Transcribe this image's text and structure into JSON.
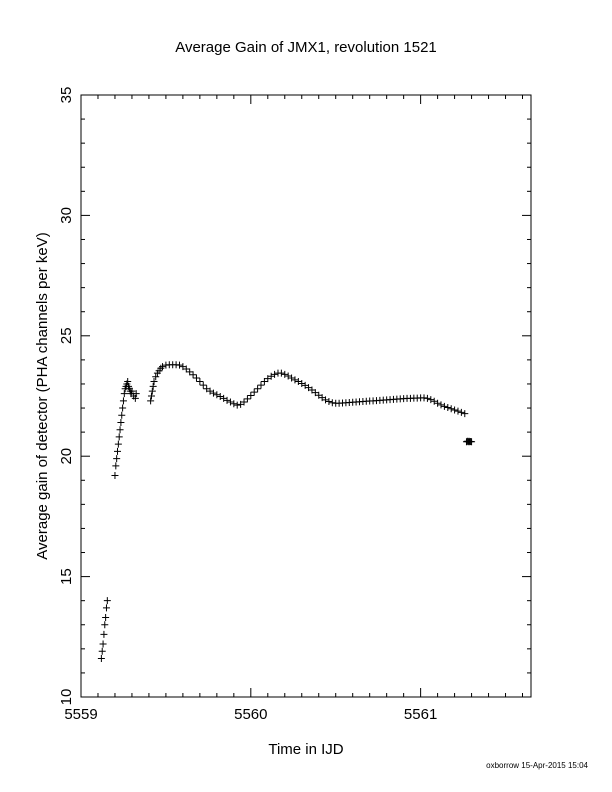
{
  "chart_data": {
    "type": "scatter",
    "title": "Average Gain of JMX1, revolution 1521",
    "xlabel": "Time in IJD",
    "ylabel": "Average gain of detector (PHA channels per keV)",
    "xlim": [
      5559,
      5561.65
    ],
    "ylim": [
      10,
      35
    ],
    "xticks": [
      5559,
      5560,
      5561
    ],
    "xtick_labels": [
      "5559",
      "5560",
      "5561"
    ],
    "yticks": [
      10,
      15,
      20,
      25,
      30,
      35
    ],
    "ytick_labels": [
      "10",
      "15",
      "20",
      "25",
      "30",
      "35"
    ],
    "grid": false,
    "marker": "plus",
    "series": [
      {
        "values": [
          [
            5559.12,
            11.6
          ],
          [
            5559.125,
            11.9
          ],
          [
            5559.13,
            12.2
          ],
          [
            5559.135,
            12.6
          ],
          [
            5559.14,
            13.0
          ],
          [
            5559.145,
            13.3
          ],
          [
            5559.15,
            13.7
          ],
          [
            5559.155,
            14.0
          ],
          [
            5559.2,
            19.2
          ],
          [
            5559.205,
            19.6
          ],
          [
            5559.21,
            19.9
          ],
          [
            5559.215,
            20.2
          ],
          [
            5559.22,
            20.5
          ],
          [
            5559.225,
            20.8
          ],
          [
            5559.23,
            21.1
          ],
          [
            5559.235,
            21.4
          ],
          [
            5559.24,
            21.7
          ],
          [
            5559.245,
            22.0
          ],
          [
            5559.25,
            22.3
          ],
          [
            5559.255,
            22.6
          ],
          [
            5559.26,
            22.8
          ],
          [
            5559.265,
            22.9
          ],
          [
            5559.27,
            23.0
          ],
          [
            5559.275,
            23.1
          ],
          [
            5559.28,
            22.9
          ],
          [
            5559.285,
            22.8
          ],
          [
            5559.29,
            22.7
          ],
          [
            5559.295,
            22.6
          ],
          [
            5559.3,
            22.7
          ],
          [
            5559.31,
            22.5
          ],
          [
            5559.32,
            22.4
          ],
          [
            5559.325,
            22.6
          ],
          [
            5559.41,
            22.3
          ],
          [
            5559.415,
            22.5
          ],
          [
            5559.42,
            22.7
          ],
          [
            5559.425,
            22.9
          ],
          [
            5559.43,
            23.1
          ],
          [
            5559.44,
            23.3
          ],
          [
            5559.45,
            23.45
          ],
          [
            5559.46,
            23.55
          ],
          [
            5559.47,
            23.65
          ],
          [
            5559.48,
            23.72
          ],
          [
            5559.5,
            23.78
          ],
          [
            5559.52,
            23.8
          ],
          [
            5559.54,
            23.8
          ],
          [
            5559.56,
            23.8
          ],
          [
            5559.58,
            23.78
          ],
          [
            5559.6,
            23.72
          ],
          [
            5559.62,
            23.62
          ],
          [
            5559.64,
            23.5
          ],
          [
            5559.66,
            23.38
          ],
          [
            5559.68,
            23.25
          ],
          [
            5559.7,
            23.1
          ],
          [
            5559.72,
            22.95
          ],
          [
            5559.74,
            22.8
          ],
          [
            5559.76,
            22.7
          ],
          [
            5559.78,
            22.62
          ],
          [
            5559.8,
            22.55
          ],
          [
            5559.82,
            22.48
          ],
          [
            5559.84,
            22.4
          ],
          [
            5559.86,
            22.32
          ],
          [
            5559.88,
            22.25
          ],
          [
            5559.9,
            22.18
          ],
          [
            5559.92,
            22.12
          ],
          [
            5559.94,
            22.15
          ],
          [
            5559.96,
            22.25
          ],
          [
            5559.98,
            22.38
          ],
          [
            5560.0,
            22.52
          ],
          [
            5560.02,
            22.66
          ],
          [
            5560.04,
            22.8
          ],
          [
            5560.06,
            22.95
          ],
          [
            5560.08,
            23.1
          ],
          [
            5560.1,
            23.22
          ],
          [
            5560.12,
            23.32
          ],
          [
            5560.14,
            23.4
          ],
          [
            5560.16,
            23.45
          ],
          [
            5560.18,
            23.45
          ],
          [
            5560.2,
            23.4
          ],
          [
            5560.22,
            23.33
          ],
          [
            5560.24,
            23.25
          ],
          [
            5560.26,
            23.17
          ],
          [
            5560.28,
            23.1
          ],
          [
            5560.3,
            23.02
          ],
          [
            5560.32,
            22.94
          ],
          [
            5560.34,
            22.85
          ],
          [
            5560.36,
            22.75
          ],
          [
            5560.38,
            22.64
          ],
          [
            5560.4,
            22.53
          ],
          [
            5560.42,
            22.43
          ],
          [
            5560.44,
            22.34
          ],
          [
            5560.46,
            22.27
          ],
          [
            5560.48,
            22.22
          ],
          [
            5560.5,
            22.2
          ],
          [
            5560.52,
            22.2
          ],
          [
            5560.54,
            22.21
          ],
          [
            5560.56,
            22.22
          ],
          [
            5560.58,
            22.23
          ],
          [
            5560.6,
            22.24
          ],
          [
            5560.62,
            22.25
          ],
          [
            5560.64,
            22.26
          ],
          [
            5560.66,
            22.27
          ],
          [
            5560.68,
            22.28
          ],
          [
            5560.7,
            22.29
          ],
          [
            5560.72,
            22.3
          ],
          [
            5560.74,
            22.31
          ],
          [
            5560.76,
            22.32
          ],
          [
            5560.78,
            22.33
          ],
          [
            5560.8,
            22.34
          ],
          [
            5560.82,
            22.35
          ],
          [
            5560.84,
            22.36
          ],
          [
            5560.86,
            22.37
          ],
          [
            5560.88,
            22.38
          ],
          [
            5560.9,
            22.39
          ],
          [
            5560.92,
            22.4
          ],
          [
            5560.94,
            22.4
          ],
          [
            5560.96,
            22.41
          ],
          [
            5560.98,
            22.41
          ],
          [
            5561.0,
            22.42
          ],
          [
            5561.02,
            22.42
          ],
          [
            5561.04,
            22.4
          ],
          [
            5561.06,
            22.35
          ],
          [
            5561.08,
            22.28
          ],
          [
            5561.1,
            22.2
          ],
          [
            5561.12,
            22.13
          ],
          [
            5561.14,
            22.07
          ],
          [
            5561.16,
            22.02
          ],
          [
            5561.18,
            21.97
          ],
          [
            5561.2,
            21.92
          ],
          [
            5561.22,
            21.87
          ],
          [
            5561.24,
            21.82
          ],
          [
            5561.26,
            21.77
          ],
          [
            5561.27,
            20.6
          ],
          [
            5561.275,
            20.62
          ],
          [
            5561.28,
            20.6
          ],
          [
            5561.285,
            20.62
          ],
          [
            5561.29,
            20.6
          ],
          [
            5561.295,
            20.61
          ],
          [
            5561.3,
            20.6
          ]
        ]
      }
    ]
  },
  "footer": {
    "credit": "oxborrow 15-Apr-2015 15:04"
  }
}
